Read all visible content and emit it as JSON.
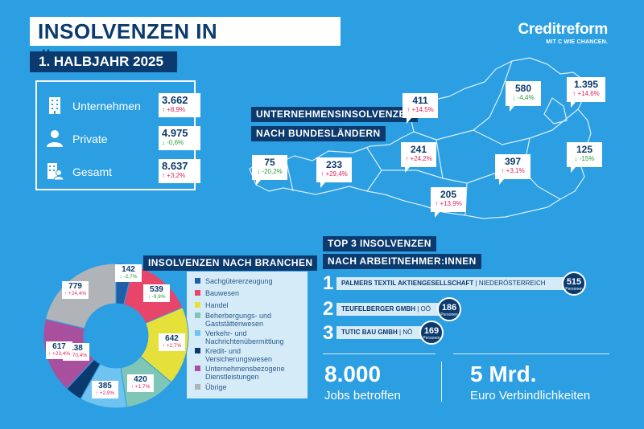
{
  "header": {
    "title": "INSOLVENZEN IN ÖSTERREICH",
    "period": "1. HALBJAHR 2025"
  },
  "logo": {
    "name": "Creditreform",
    "slogan": "MIT C WIE CHANCEN."
  },
  "colors": {
    "background": "#2c9fe3",
    "navy": "#0b3a6e",
    "up": "#e0245e",
    "down": "#2a9d3e"
  },
  "summary": [
    {
      "icon": "building-icon",
      "label": "Unternehmen",
      "value": "3.662",
      "change": "+8,9%",
      "direction": "up"
    },
    {
      "icon": "person-icon",
      "label": "Private",
      "value": "4.975",
      "change": "-0,6%",
      "direction": "down"
    },
    {
      "icon": "total-icon",
      "label": "Gesamt",
      "value": "8.637",
      "change": "+3,2%",
      "direction": "up"
    }
  ],
  "map": {
    "title_line1": "UNTERNEHMENSINSOLVENZEN",
    "title_line2": "NACH BUNDESLÄNDERN",
    "regions": [
      {
        "value": "411",
        "change": "+14,5%",
        "direction": "up"
      },
      {
        "value": "580",
        "change": "-4,4%",
        "direction": "down"
      },
      {
        "value": "1.395",
        "change": "+14,6%",
        "direction": "up"
      },
      {
        "value": "75",
        "change": "-20,2%",
        "direction": "down"
      },
      {
        "value": "233",
        "change": "+29,4%",
        "direction": "up"
      },
      {
        "value": "241",
        "change": "+24,2%",
        "direction": "up"
      },
      {
        "value": "397",
        "change": "+3,1%",
        "direction": "up"
      },
      {
        "value": "125",
        "change": "-15%",
        "direction": "down"
      },
      {
        "value": "205",
        "change": "+13,9%",
        "direction": "up"
      }
    ]
  },
  "branches": {
    "title": "INSOLVENZEN NACH BRANCHEN",
    "legend": [
      {
        "label": "Sachgütererzeugung",
        "color": "#1f5fa8"
      },
      {
        "label": "Bauwesen",
        "color": "#e8456b"
      },
      {
        "label": "Handel",
        "color": "#e6e13a"
      },
      {
        "label": "Beherbergungs- und Gaststättenwesen",
        "color": "#7fc6b8"
      },
      {
        "label": "Verkehr- und Nachrichtenübermittlung",
        "color": "#6fc3f0"
      },
      {
        "label": "Kredit- und Versicherungswesen",
        "color": "#0b3a6e"
      },
      {
        "label": "Unternehmensbezogene Dienstleistungen",
        "color": "#a8509e"
      },
      {
        "label": "Übrige",
        "color": "#b0b3b8"
      }
    ],
    "values": [
      {
        "value": "142",
        "change": "-2,7%",
        "direction": "down"
      },
      {
        "value": "539",
        "change": "-9,9%",
        "direction": "down"
      },
      {
        "value": "642",
        "change": "+2,7%",
        "direction": "up"
      },
      {
        "value": "420",
        "change": "+1,7%",
        "direction": "up"
      },
      {
        "value": "385",
        "change": "+2,9%",
        "direction": "up"
      },
      {
        "value": "138",
        "change": "+70,4%",
        "direction": "up"
      },
      {
        "value": "617",
        "change": "+23,4%",
        "direction": "up"
      },
      {
        "value": "779",
        "change": "+24,4%",
        "direction": "up"
      }
    ]
  },
  "top3": {
    "title_line1": "TOP 3 INSOLVENZEN",
    "title_line2": "NACH ARBEITNEHMER:INNEN",
    "items": [
      {
        "rank": "1",
        "company": "PALMERS TEXTIL AKTIENGESELLSCHAFT",
        "region": "NIEDERÖSTERREICH",
        "employees": "515",
        "unit": "Personen"
      },
      {
        "rank": "2",
        "company": "TEUFELBERGER GMBH",
        "region": "OÖ",
        "employees": "186",
        "unit": "Personen"
      },
      {
        "rank": "3",
        "company": "TUTIC BAU GMBH",
        "region": "NÖ",
        "employees": "169",
        "unit": "Personen"
      }
    ]
  },
  "facts": [
    {
      "number": "8.000",
      "label": "Jobs betroffen"
    },
    {
      "number": "5 Mrd.",
      "label": "Euro Verbindlichkeiten"
    }
  ]
}
